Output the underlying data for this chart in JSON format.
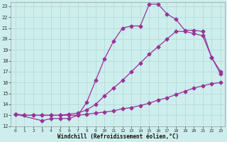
{
  "xlabel": "Windchill (Refroidissement éolien,°C)",
  "bg_color": "#cdeeed",
  "grid_color": "#b0d8d8",
  "line_color": "#993399",
  "xlim": [
    -0.5,
    23.5
  ],
  "ylim": [
    12,
    23.4
  ],
  "yticks": [
    12,
    13,
    14,
    15,
    16,
    17,
    18,
    19,
    20,
    21,
    22,
    23
  ],
  "xticks": [
    0,
    1,
    2,
    3,
    4,
    5,
    6,
    7,
    8,
    9,
    10,
    11,
    12,
    13,
    14,
    15,
    16,
    17,
    18,
    19,
    20,
    21,
    22,
    23
  ],
  "line1_x": [
    0,
    1,
    2,
    3,
    4,
    5,
    6,
    7,
    8,
    9,
    10,
    11,
    12,
    13,
    14,
    15,
    16,
    17,
    18,
    19,
    20,
    21,
    22,
    23
  ],
  "line1_y": [
    13.1,
    13.0,
    13.0,
    13.0,
    13.0,
    13.0,
    13.0,
    13.0,
    13.1,
    13.2,
    13.3,
    13.4,
    13.6,
    13.7,
    13.9,
    14.1,
    14.4,
    14.6,
    14.9,
    15.2,
    15.5,
    15.7,
    15.9,
    16.0
  ],
  "line1_markers_x": [
    0,
    1,
    2,
    3,
    4,
    5,
    6,
    7,
    8,
    9,
    10,
    11,
    12,
    13,
    14,
    15,
    16,
    17,
    18,
    19,
    20,
    21,
    22,
    23
  ],
  "line1_markers_y": [
    13.1,
    13.0,
    13.0,
    13.0,
    13.0,
    13.0,
    13.0,
    13.0,
    13.1,
    13.2,
    13.3,
    13.4,
    13.6,
    13.7,
    13.9,
    14.1,
    14.4,
    14.6,
    14.9,
    15.2,
    15.5,
    15.7,
    15.9,
    16.0
  ],
  "line3_x": [
    0,
    3,
    4,
    5,
    6,
    7,
    8,
    9,
    10,
    11,
    12,
    13,
    14,
    15,
    16,
    17,
    18,
    19,
    20,
    21,
    22,
    23
  ],
  "line3_y": [
    13.1,
    12.5,
    12.7,
    12.7,
    12.7,
    13.0,
    14.2,
    16.2,
    18.2,
    19.8,
    21.0,
    21.2,
    21.2,
    23.2,
    23.2,
    22.3,
    21.8,
    20.8,
    20.8,
    20.7,
    18.3,
    17.0
  ],
  "line4_x": [
    0,
    1,
    2,
    3,
    4,
    5,
    6,
    7,
    8,
    9,
    10,
    11,
    12,
    13,
    14,
    15,
    16,
    17,
    18,
    19,
    20,
    21,
    22,
    23
  ],
  "line4_y": [
    13.1,
    13.0,
    13.0,
    13.0,
    13.0,
    13.0,
    13.1,
    13.2,
    13.5,
    14.0,
    14.8,
    15.5,
    16.2,
    17.0,
    17.8,
    18.6,
    19.3,
    20.0,
    20.7,
    20.7,
    20.5,
    20.3,
    18.3,
    16.8
  ]
}
